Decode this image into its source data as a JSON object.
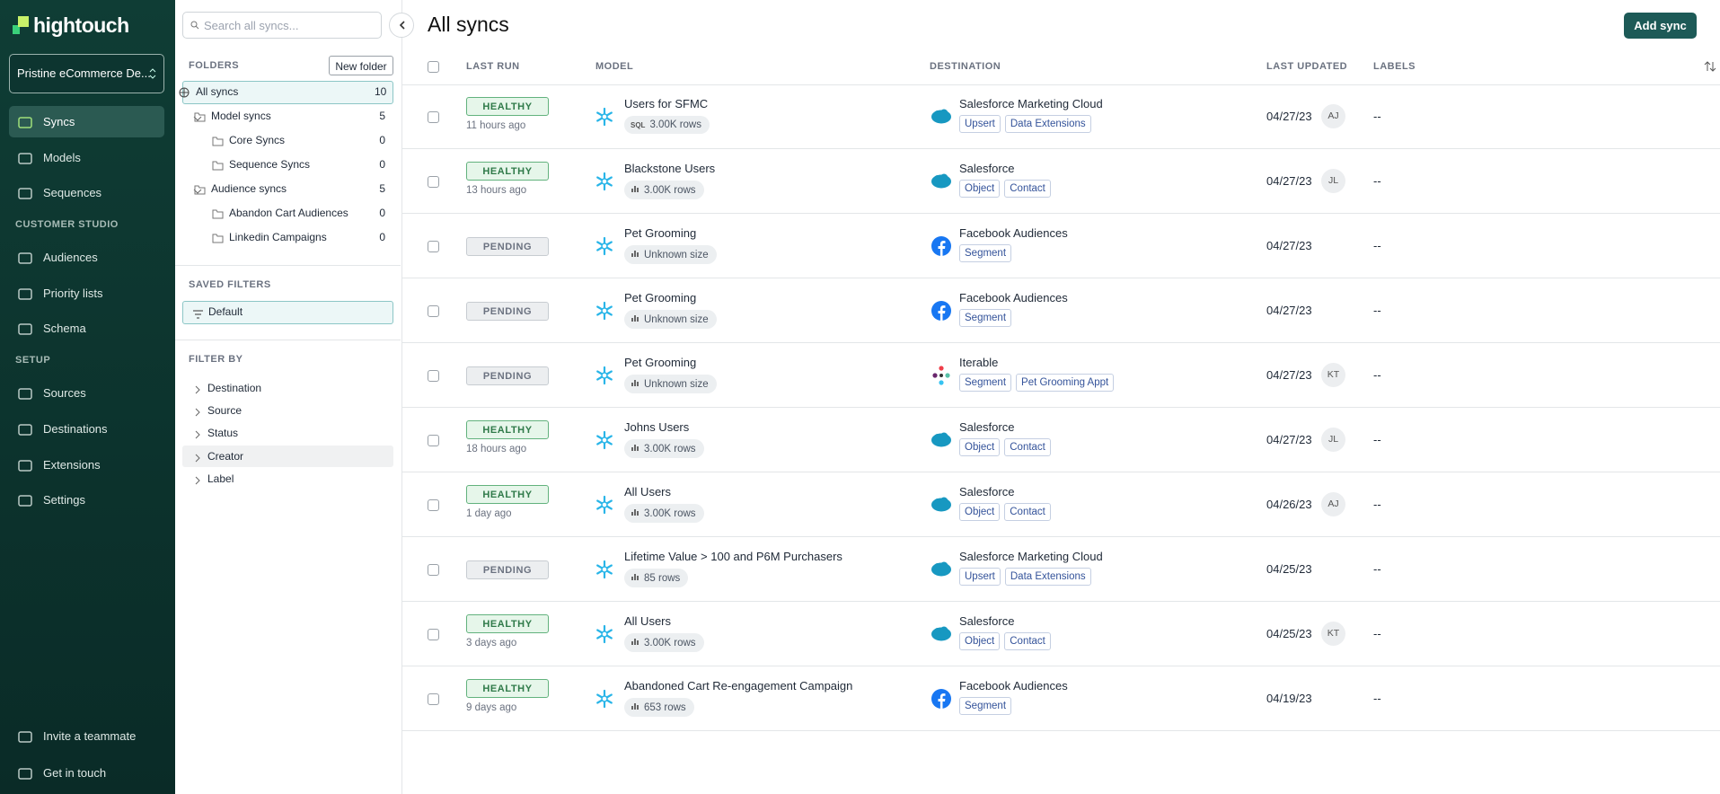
{
  "brand": "hightouch",
  "workspace": "Pristine eCommerce De...",
  "nav_main": [
    "Syncs",
    "Models",
    "Sequences"
  ],
  "section_customer_studio": "CUSTOMER STUDIO",
  "nav_customer_studio": [
    "Audiences",
    "Priority lists",
    "Schema"
  ],
  "section_setup": "SETUP",
  "nav_setup": [
    "Sources",
    "Destinations",
    "Extensions",
    "Settings"
  ],
  "nav_footer": [
    "Invite a teammate",
    "Get in touch"
  ],
  "search_placeholder": "Search all syncs...",
  "folders": {
    "title": "FOLDERS",
    "button": "New folder",
    "items": [
      {
        "label": "All syncs",
        "count": 10
      },
      {
        "label": "Model syncs",
        "count": 5
      },
      {
        "label": "Core Syncs",
        "count": 0
      },
      {
        "label": "Sequence Syncs",
        "count": 0
      },
      {
        "label": "Audience syncs",
        "count": 5
      },
      {
        "label": "Abandon Cart Audiences",
        "count": 0
      },
      {
        "label": "Linkedin Campaigns",
        "count": 0
      }
    ]
  },
  "saved_filters": {
    "title": "SAVED FILTERS",
    "items": [
      "Default"
    ]
  },
  "filter_by": {
    "title": "FILTER BY",
    "items": [
      "Destination",
      "Source",
      "Status",
      "Creator",
      "Label"
    ]
  },
  "page_title": "All syncs",
  "add_button": "Add sync",
  "table": {
    "columns": [
      "LAST RUN",
      "MODEL",
      "DESTINATION",
      "LAST UPDATED",
      "LABELS"
    ],
    "rows": [
      {
        "status": "HEALTHY",
        "last_run": "11 hours ago",
        "model": "Users for SFMC",
        "size_icon": "SQL",
        "size": "3.00K rows",
        "destination": "Salesforce Marketing Cloud",
        "dest_tags": [
          "Upsert",
          "Data Extensions"
        ],
        "updated": "04/27/23",
        "creator": "AJ",
        "labels": "--"
      },
      {
        "status": "HEALTHY",
        "last_run": "13 hours ago",
        "model": "Blackstone Users",
        "size": "3.00K rows",
        "destination": "Salesforce",
        "dest_tags": [
          "Object",
          "Contact"
        ],
        "updated": "04/27/23",
        "creator": "JL",
        "labels": "--"
      },
      {
        "status": "PENDING",
        "model": "Pet Grooming",
        "size": "Unknown size",
        "destination": "Facebook Audiences",
        "dest_tags": [
          "Segment"
        ],
        "updated": "04/27/23",
        "labels": "--"
      },
      {
        "status": "PENDING",
        "model": "Pet Grooming",
        "size": "Unknown size",
        "destination": "Facebook Audiences",
        "dest_tags": [
          "Segment"
        ],
        "updated": "04/27/23",
        "labels": "--"
      },
      {
        "status": "PENDING",
        "model": "Pet Grooming",
        "size": "Unknown size",
        "destination": "Iterable",
        "dest_tags": [
          "Segment",
          "Pet Grooming Appt"
        ],
        "updated": "04/27/23",
        "creator": "KT",
        "labels": "--"
      },
      {
        "status": "HEALTHY",
        "last_run": "18 hours ago",
        "model": "Johns Users",
        "size": "3.00K rows",
        "destination": "Salesforce",
        "dest_tags": [
          "Object",
          "Contact"
        ],
        "updated": "04/27/23",
        "creator": "JL",
        "labels": "--"
      },
      {
        "status": "HEALTHY",
        "last_run": "1 day ago",
        "model": "All Users",
        "size": "3.00K rows",
        "destination": "Salesforce",
        "dest_tags": [
          "Object",
          "Contact"
        ],
        "updated": "04/26/23",
        "creator": "AJ",
        "labels": "--"
      },
      {
        "status": "PENDING",
        "model": "Lifetime Value > 100 and P6M Purchasers",
        "size": "85 rows",
        "destination": "Salesforce Marketing Cloud",
        "dest_tags": [
          "Upsert",
          "Data Extensions"
        ],
        "updated": "04/25/23",
        "labels": "--"
      },
      {
        "status": "HEALTHY",
        "last_run": "3 days ago",
        "model": "All Users",
        "size": "3.00K rows",
        "destination": "Salesforce",
        "dest_tags": [
          "Object",
          "Contact"
        ],
        "updated": "04/25/23",
        "creator": "KT",
        "labels": "--"
      },
      {
        "status": "HEALTHY",
        "last_run": "9 days ago",
        "model": "Abandoned Cart Re-engagement Campaign",
        "size": "653 rows",
        "destination": "Facebook Audiences",
        "dest_tags": [
          "Segment"
        ],
        "updated": "04/19/23",
        "labels": "--"
      }
    ]
  }
}
